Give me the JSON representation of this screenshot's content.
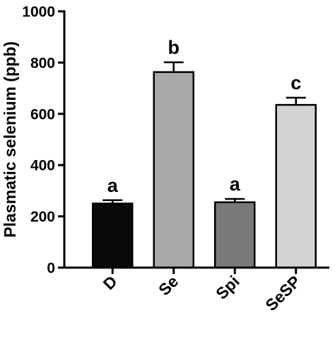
{
  "chart_data": {
    "type": "bar",
    "title": "",
    "xlabel": "",
    "ylabel": "Plasmatic selenium (ppb)",
    "ylim": [
      0,
      1000
    ],
    "yticks": [
      0,
      200,
      400,
      600,
      800,
      1000
    ],
    "grid": false,
    "categories": [
      "D",
      "Se",
      "Spi",
      "SeSP"
    ],
    "values": [
      250,
      763,
      255,
      635
    ],
    "errors": [
      13,
      38,
      13,
      28
    ],
    "significance_labels": [
      "a",
      "b",
      "a",
      "c"
    ],
    "bar_colors": [
      "#0a0a0a",
      "#a9a9a9",
      "#7a7a7a",
      "#d4d4d4"
    ]
  }
}
